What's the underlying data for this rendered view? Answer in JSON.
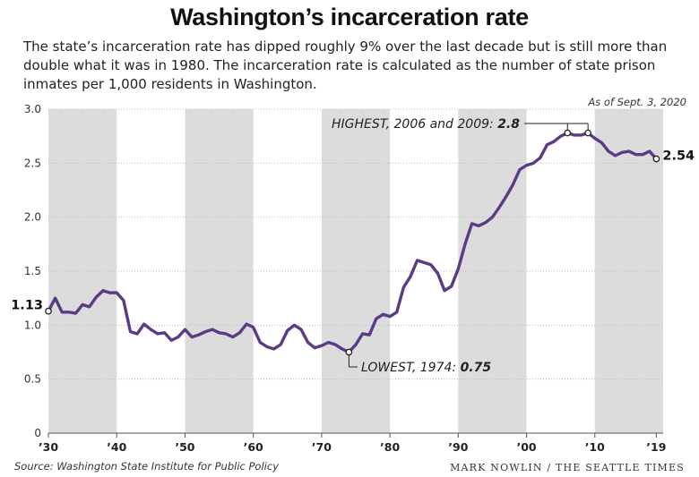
{
  "header": {
    "title": "Washington’s incarceration rate",
    "subtitle": "The state’s incarceration rate has dipped roughly 9% over the last decade but is still more than double what it was in 1980. The incarceration rate is calculated as the number of state prison inmates per 1,000 residents in Washington.",
    "as_of": "As of Sept. 3, 2020"
  },
  "footer": {
    "source": "Source: Washington State Institute for Public Policy",
    "credit": "MARK NOWLIN / THE SEATTLE TIMES"
  },
  "colors": {
    "line": "#5b3b86",
    "band": "#dcdcdc",
    "text": "#222222"
  },
  "chart_data": {
    "type": "line",
    "xlim": [
      1930,
      2020
    ],
    "ylim": [
      0,
      3.0
    ],
    "yticks": [
      0,
      0.5,
      1.0,
      1.5,
      2.0,
      2.5,
      3.0
    ],
    "ytick_labels": [
      "0",
      "0.5",
      "1.0",
      "1.5",
      "2.0",
      "2.5",
      "3.0"
    ],
    "xticks": [
      1930,
      1940,
      1950,
      1960,
      1970,
      1980,
      1990,
      2000,
      2010,
      2019
    ],
    "xtick_labels": [
      "’30",
      "’40",
      "’50",
      "’60",
      "’70",
      "’80",
      "’90",
      "’00",
      "’10",
      "’19"
    ],
    "shaded_decades": [
      [
        1930,
        1940
      ],
      [
        1950,
        1960
      ],
      [
        1970,
        1980
      ],
      [
        1990,
        2000
      ],
      [
        2010,
        2020
      ]
    ],
    "grid": true,
    "series": [
      {
        "x": [
          1930,
          1931,
          1932,
          1933,
          1934,
          1935,
          1936,
          1937,
          1938,
          1939,
          1940,
          1941,
          1942,
          1943,
          1944,
          1945,
          1946,
          1947,
          1948,
          1949,
          1950,
          1951,
          1952,
          1953,
          1954,
          1955,
          1956,
          1957,
          1958,
          1959,
          1960,
          1961,
          1962,
          1963,
          1964,
          1965,
          1966,
          1967,
          1968,
          1969,
          1970,
          1971,
          1972,
          1973,
          1974,
          1975,
          1976,
          1977,
          1978,
          1979,
          1980,
          1981,
          1982,
          1983,
          1984,
          1985,
          1986,
          1987,
          1988,
          1989,
          1990,
          1991,
          1992,
          1993,
          1994,
          1995,
          1996,
          1997,
          1998,
          1999,
          2000,
          2001,
          2002,
          2003,
          2004,
          2005,
          2006,
          2007,
          2008,
          2009,
          2010,
          2011,
          2012,
          2013,
          2014,
          2015,
          2016,
          2017,
          2018,
          2019
        ],
        "values": [
          1.13,
          1.25,
          1.12,
          1.12,
          1.11,
          1.19,
          1.17,
          1.26,
          1.32,
          1.3,
          1.3,
          1.23,
          0.94,
          0.92,
          1.01,
          0.96,
          0.92,
          0.93,
          0.86,
          0.89,
          0.96,
          0.89,
          0.91,
          0.94,
          0.96,
          0.93,
          0.92,
          0.89,
          0.93,
          1.01,
          0.98,
          0.84,
          0.8,
          0.78,
          0.82,
          0.95,
          1.0,
          0.96,
          0.84,
          0.79,
          0.81,
          0.84,
          0.82,
          0.78,
          0.75,
          0.82,
          0.92,
          0.91,
          1.06,
          1.1,
          1.08,
          1.12,
          1.35,
          1.45,
          1.6,
          1.58,
          1.56,
          1.48,
          1.32,
          1.36,
          1.52,
          1.75,
          1.94,
          1.92,
          1.95,
          2.0,
          2.09,
          2.19,
          2.3,
          2.44,
          2.48,
          2.5,
          2.55,
          2.67,
          2.7,
          2.75,
          2.78,
          2.76,
          2.76,
          2.78,
          2.73,
          2.69,
          2.61,
          2.57,
          2.6,
          2.61,
          2.58,
          2.58,
          2.61,
          2.54
        ]
      }
    ],
    "annotations": {
      "start_label": "1.13",
      "end_label": "2.54",
      "highest_text": "HIGHEST, 2006 and 2009: ",
      "highest_value": "2.8",
      "highest_years": [
        2006,
        2009
      ],
      "lowest_text": "LOWEST, 1974: ",
      "lowest_value": "0.75",
      "lowest_year": 1974
    }
  }
}
